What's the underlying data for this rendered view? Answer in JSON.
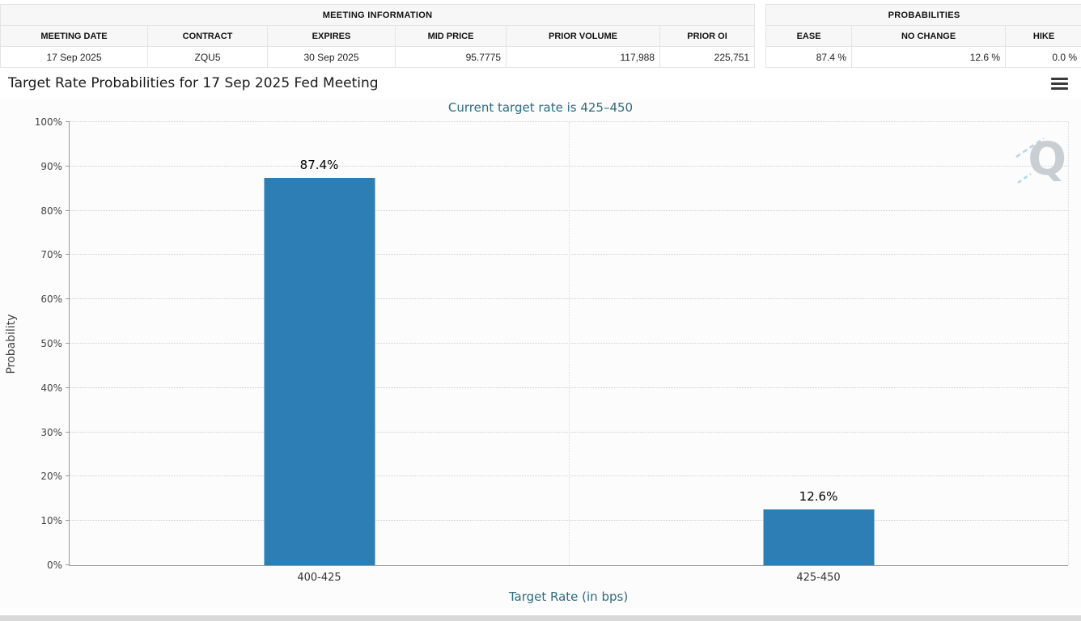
{
  "meeting_information": {
    "title": "MEETING INFORMATION",
    "columns": [
      "MEETING DATE",
      "CONTRACT",
      "EXPIRES",
      "MID PRICE",
      "PRIOR VOLUME",
      "PRIOR OI"
    ],
    "row": [
      "17 Sep 2025",
      "ZQU5",
      "30 Sep 2025",
      "95.7775",
      "117,988",
      "225,751"
    ]
  },
  "probabilities_summary": {
    "title": "PROBABILITIES",
    "columns": [
      "EASE",
      "NO CHANGE",
      "HIKE"
    ],
    "row": [
      "87.4 %",
      "12.6 %",
      "0.0 %"
    ]
  },
  "chart_header": {
    "title": "Target Rate Probabilities for 17 Sep 2025 Fed Meeting",
    "menu_icon": "hamburger-menu-icon"
  },
  "chart_data": {
    "type": "bar",
    "title": "Target Rate Probabilities for 17 Sep 2025 Fed Meeting",
    "subtitle": "Current target rate is 425–450",
    "categories": [
      "400-425",
      "425-450"
    ],
    "values": [
      87.4,
      12.6
    ],
    "value_labels": [
      "87.4%",
      "12.6%"
    ],
    "xlabel": "Target Rate (in bps)",
    "ylabel": "Probability",
    "ylim": [
      0,
      100
    ],
    "ytick_step": 10,
    "ytick_labels": [
      "0%",
      "10%",
      "20%",
      "30%",
      "40%",
      "50%",
      "60%",
      "70%",
      "80%",
      "90%",
      "100%"
    ],
    "grid": "dotted",
    "legend": "none",
    "bar_color": "#2d7eb5",
    "accent_color": "#2e6c80",
    "watermark": "Q"
  }
}
